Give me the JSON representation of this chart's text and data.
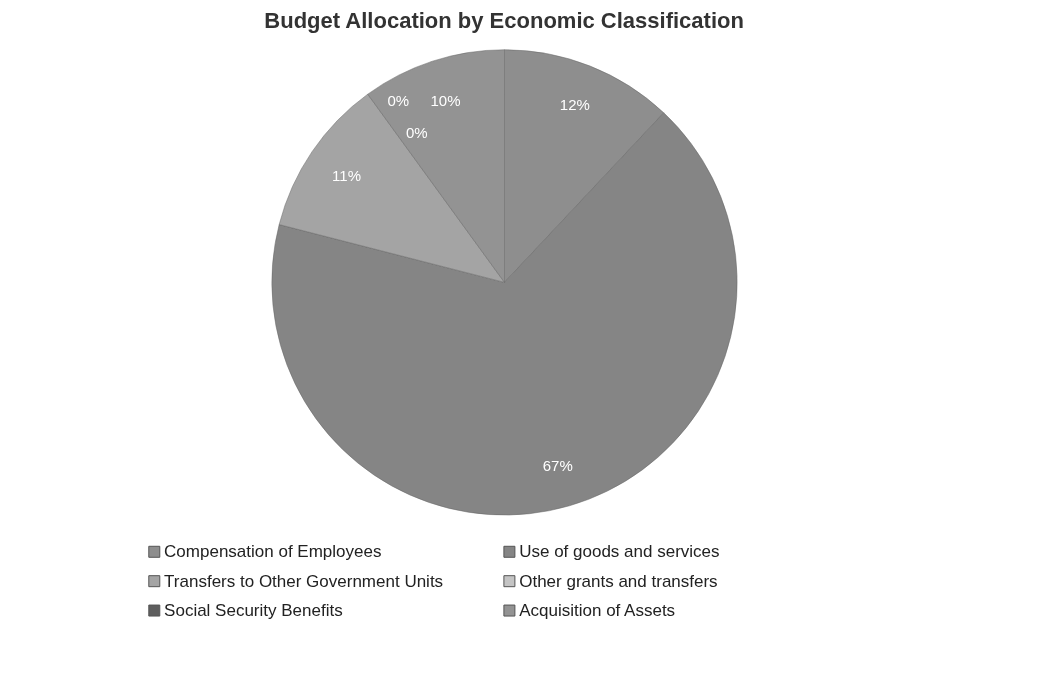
{
  "chart_data": {
    "type": "pie",
    "title": "Budget Allocation by Economic Classification",
    "categories": [
      "Compensation of Employees",
      "Use of goods and services",
      "Transfers to Other Government Units",
      "Other grants and transfers",
      "Social Security Benefits",
      "Acquisition of Assets"
    ],
    "values": [
      12,
      67,
      11,
      0,
      0,
      10
    ],
    "colors": [
      "#8e8e8e",
      "#858585",
      "#a4a4a4",
      "#c4c4c4",
      "#5e5e5e",
      "#939393"
    ],
    "value_labels": [
      "12%",
      "67%",
      "11%",
      "0%",
      "0%",
      "10%"
    ],
    "legend": "bottom"
  }
}
